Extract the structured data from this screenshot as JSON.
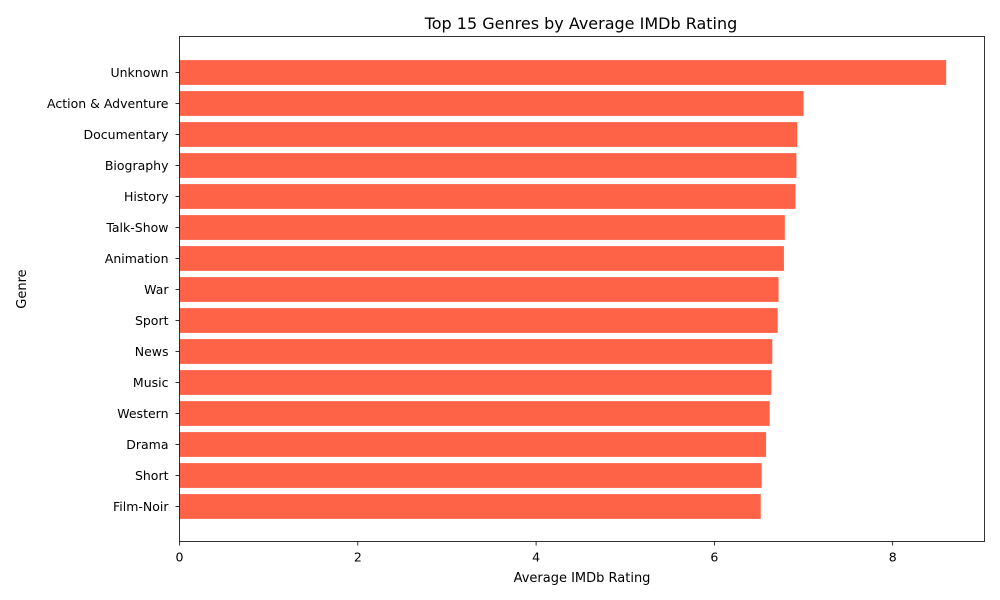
{
  "chart_data": {
    "type": "bar",
    "orientation": "horizontal",
    "title": "Top 15 Genres by Average IMDb Rating",
    "xlabel": "Average IMDb Rating",
    "ylabel": "Genre",
    "xlim": [
      0,
      9.03
    ],
    "xticks": [
      0,
      2,
      4,
      6,
      8
    ],
    "grid": false,
    "bar_color": "#ff6347",
    "categories": [
      "Unknown",
      "Action & Adventure",
      "Documentary",
      "Biography",
      "History",
      "Talk-Show",
      "Animation",
      "War",
      "Sport",
      "News",
      "Music",
      "Western",
      "Drama",
      "Short",
      "Film-Noir"
    ],
    "values": [
      8.6,
      7.0,
      6.93,
      6.92,
      6.91,
      6.79,
      6.78,
      6.72,
      6.71,
      6.65,
      6.64,
      6.62,
      6.58,
      6.53,
      6.52
    ]
  }
}
